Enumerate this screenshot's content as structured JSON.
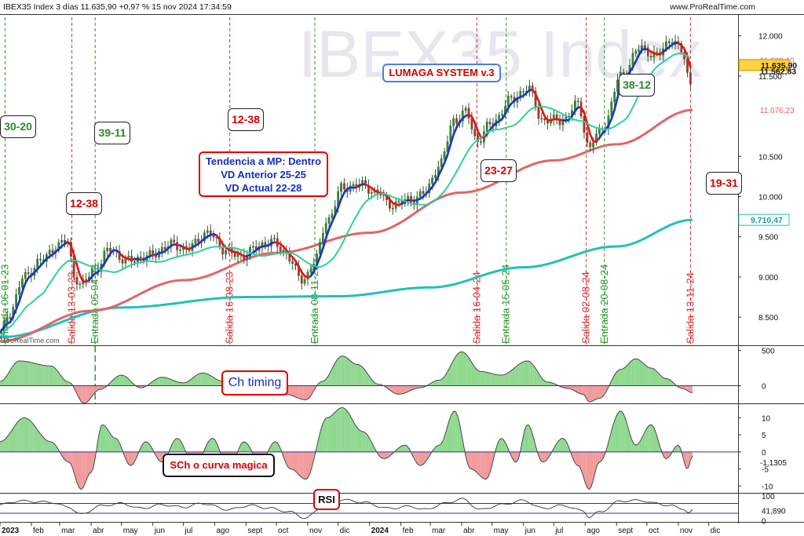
{
  "header": {
    "title": "IBEX35 Index 3 días 11.635,90 +0,97 % 15 nov 2024 17:34:59",
    "source": "www.ProRealTime.com",
    "watermark": "IBEX35 Index",
    "credit": "ProRealTime.com"
  },
  "colors": {
    "candle_up": "#2e8b2e",
    "candle_down": "#c62828",
    "ma_fast": "#2fd0a0",
    "ma_mid": "#e06666",
    "ma_slow": "#22bfbf",
    "trend_blue": "#1a34c8",
    "trend_red": "#e81414",
    "trend_orange": "#f08020",
    "signal_entry": "#2a9a2a",
    "signal_exit": "#d63030",
    "hist_pos": "#8fd88f",
    "hist_neg": "#f09a9a"
  },
  "annotations": {
    "title_box": "LUMAGA SYSTEM v.3",
    "trend_box": [
      "Tendencia a MP: Dentro",
      "VD Anterior 25-25",
      "VD Actual 22-28"
    ],
    "ch_box": "Ch timing",
    "sch_box": "SCh o curva magica",
    "rsi_box": "RSI",
    "count_labels": [
      {
        "text": "30-20",
        "type": "entry"
      },
      {
        "text": "12-38",
        "type": "exit"
      },
      {
        "text": "39-11",
        "type": "entry"
      },
      {
        "text": "12-38",
        "type": "exit"
      },
      {
        "text": "23-27",
        "type": "exit"
      },
      {
        "text": "38-12",
        "type": "entry"
      },
      {
        "text": "19-31",
        "type": "exit"
      }
    ]
  },
  "chart_data": [
    {
      "type": "candlestick",
      "title": "IBEX35 Index 3 días",
      "y_ticks": [
        "12.000",
        "11.500",
        "10.500",
        "10.000",
        "9.500",
        "9.000",
        "8.500"
      ],
      "y_tick_values": [
        12000,
        11500,
        10500,
        10000,
        9500,
        9000,
        8500
      ],
      "ylim": [
        8150,
        12250
      ],
      "x_ticks": [
        "2023",
        "feb",
        "mar",
        "abr",
        "may",
        "jun",
        "jul",
        "ago",
        "sept",
        "oct",
        "nov",
        "dic",
        "2024",
        "feb",
        "mar",
        "abr",
        "may",
        "jun",
        "jul",
        "ago",
        "sept",
        "oct",
        "nov",
        "dic"
      ],
      "x_tick_dates": [
        "2023-01-01",
        "2023-02-01",
        "2023-03-01",
        "2023-04-01",
        "2023-05-01",
        "2023-06-01",
        "2023-07-01",
        "2023-08-01",
        "2023-09-01",
        "2023-10-01",
        "2023-11-01",
        "2023-12-01",
        "2024-01-01",
        "2024-02-01",
        "2024-03-01",
        "2024-04-01",
        "2024-05-01",
        "2024-06-01",
        "2024-07-01",
        "2024-08-01",
        "2024-09-01",
        "2024-10-01",
        "2024-11-01",
        "2024-12-01"
      ],
      "xlim": [
        "2023-01-01",
        "2024-12-30"
      ],
      "price_labels": [
        {
          "text": "11.698,10",
          "value": 11698.1,
          "style": "red-text"
        },
        {
          "text": "11.635,90",
          "value": 11635.9,
          "style": "orange-box"
        },
        {
          "text": "11.562,83",
          "value": 11562.83,
          "style": "plain"
        },
        {
          "text": "11.076,23",
          "value": 11076.23,
          "style": "red-text"
        },
        {
          "text": "9.710,47",
          "value": 9710.47,
          "style": "teal-box"
        }
      ],
      "close_anchors": [
        [
          "2023-01-02",
          8300
        ],
        [
          "2023-01-10",
          8550
        ],
        [
          "2023-01-25",
          9000
        ],
        [
          "2023-02-10",
          9200
        ],
        [
          "2023-02-28",
          9400
        ],
        [
          "2023-03-08",
          9450
        ],
        [
          "2023-03-16",
          9000
        ],
        [
          "2023-03-22",
          8900
        ],
        [
          "2023-04-05",
          9100
        ],
        [
          "2023-04-20",
          9350
        ],
        [
          "2023-05-05",
          9200
        ],
        [
          "2023-05-25",
          9250
        ],
        [
          "2023-06-20",
          9400
        ],
        [
          "2023-07-05",
          9350
        ],
        [
          "2023-07-25",
          9550
        ],
        [
          "2023-08-10",
          9350
        ],
        [
          "2023-08-25",
          9250
        ],
        [
          "2023-09-10",
          9350
        ],
        [
          "2023-09-25",
          9450
        ],
        [
          "2023-10-10",
          9300
        ],
        [
          "2023-10-27",
          8950
        ],
        [
          "2023-11-08",
          9200
        ],
        [
          "2023-11-20",
          9700
        ],
        [
          "2023-12-05",
          10100
        ],
        [
          "2023-12-20",
          10150
        ],
        [
          "2024-01-10",
          10050
        ],
        [
          "2024-01-20",
          9900
        ],
        [
          "2024-02-10",
          9950
        ],
        [
          "2024-02-25",
          10050
        ],
        [
          "2024-03-10",
          10400
        ],
        [
          "2024-03-25",
          10950
        ],
        [
          "2024-04-05",
          11050
        ],
        [
          "2024-04-16",
          10700
        ],
        [
          "2024-04-30",
          10900
        ],
        [
          "2024-05-20",
          11200
        ],
        [
          "2024-06-05",
          11350
        ],
        [
          "2024-06-20",
          10950
        ],
        [
          "2024-07-10",
          10950
        ],
        [
          "2024-07-25",
          11150
        ],
        [
          "2024-08-05",
          10600
        ],
        [
          "2024-08-12",
          10750
        ],
        [
          "2024-08-20",
          10900
        ],
        [
          "2024-09-05",
          11500
        ],
        [
          "2024-09-25",
          11850
        ],
        [
          "2024-10-10",
          11750
        ],
        [
          "2024-10-25",
          11950
        ],
        [
          "2024-11-05",
          11800
        ],
        [
          "2024-11-13",
          11400
        ],
        [
          "2024-11-15",
          11636
        ]
      ],
      "series": [
        {
          "name": "MA slow",
          "color": "#22bfbf",
          "points": [
            [
              "2023-01-01",
              8250
            ],
            [
              "2023-05-01",
              8620
            ],
            [
              "2023-09-01",
              8750
            ],
            [
              "2023-12-01",
              8760
            ],
            [
              "2024-03-01",
              8870
            ],
            [
              "2024-06-01",
              9120
            ],
            [
              "2024-09-01",
              9380
            ],
            [
              "2024-11-15",
              9710
            ]
          ]
        },
        {
          "name": "MA mid",
          "color": "#e06666",
          "points": [
            [
              "2023-01-01",
              8200
            ],
            [
              "2023-04-01",
              8580
            ],
            [
              "2023-07-01",
              8960
            ],
            [
              "2023-10-01",
              9300
            ],
            [
              "2024-01-01",
              9550
            ],
            [
              "2024-04-01",
              10050
            ],
            [
              "2024-07-01",
              10450
            ],
            [
              "2024-09-01",
              10650
            ],
            [
              "2024-11-15",
              11076
            ]
          ]
        }
      ],
      "signals": [
        {
          "label": "Entrada 06-01-23",
          "date": "2023-01-06",
          "type": "entry"
        },
        {
          "label": "Salida 13-03-23",
          "date": "2023-03-13",
          "type": "exit"
        },
        {
          "label": "Entrada 05-04-23",
          "date": "2023-04-05",
          "type": "entry"
        },
        {
          "label": "Salida 16-08-23",
          "date": "2023-08-16",
          "type": "exit"
        },
        {
          "label": "Entrada 08-11-23",
          "date": "2023-11-08",
          "type": "entry"
        },
        {
          "label": "Salida 16-04-24",
          "date": "2024-04-16",
          "type": "exit"
        },
        {
          "label": "Entrada 15-05-24",
          "date": "2024-05-15",
          "type": "entry"
        },
        {
          "label": "Salida 02-08-24",
          "date": "2024-08-02",
          "type": "exit"
        },
        {
          "label": "Entrada 20-08-24",
          "date": "2024-08-20",
          "type": "entry"
        },
        {
          "label": "Salida 13-11-24",
          "date": "2024-11-13",
          "type": "exit"
        }
      ]
    },
    {
      "type": "area",
      "title": "Ch timing",
      "y_ticks": [
        "500",
        "0"
      ],
      "y_tick_values": [
        500,
        0
      ],
      "ylim": [
        -250,
        560
      ],
      "anchors": [
        [
          "2023-01-01",
          60
        ],
        [
          "2023-01-20",
          350
        ],
        [
          "2023-02-20",
          280
        ],
        [
          "2023-03-10",
          50
        ],
        [
          "2023-03-25",
          -250
        ],
        [
          "2023-04-10",
          -50
        ],
        [
          "2023-05-01",
          150
        ],
        [
          "2023-05-20",
          -30
        ],
        [
          "2023-06-10",
          120
        ],
        [
          "2023-07-01",
          40
        ],
        [
          "2023-07-20",
          180
        ],
        [
          "2023-08-10",
          60
        ],
        [
          "2023-08-28",
          -60
        ],
        [
          "2023-09-20",
          40
        ],
        [
          "2023-10-10",
          -120
        ],
        [
          "2023-10-30",
          -200
        ],
        [
          "2023-11-15",
          60
        ],
        [
          "2023-12-05",
          420
        ],
        [
          "2023-12-20",
          300
        ],
        [
          "2024-01-10",
          20
        ],
        [
          "2024-01-30",
          -120
        ],
        [
          "2024-02-20",
          -30
        ],
        [
          "2024-03-10",
          80
        ],
        [
          "2024-04-01",
          480
        ],
        [
          "2024-04-20",
          200
        ],
        [
          "2024-05-10",
          150
        ],
        [
          "2024-06-05",
          350
        ],
        [
          "2024-06-25",
          50
        ],
        [
          "2024-07-15",
          -40
        ],
        [
          "2024-07-30",
          -120
        ],
        [
          "2024-08-05",
          -230
        ],
        [
          "2024-08-15",
          -180
        ],
        [
          "2024-09-05",
          230
        ],
        [
          "2024-09-20",
          380
        ],
        [
          "2024-10-05",
          250
        ],
        [
          "2024-10-20",
          100
        ],
        [
          "2024-11-05",
          -40
        ],
        [
          "2024-11-15",
          -100
        ]
      ]
    },
    {
      "type": "area",
      "title": "SCh o curva magica",
      "y_ticks": [
        "10",
        "5",
        "0",
        "-5",
        "-10"
      ],
      "y_tick_values": [
        10,
        5,
        0,
        -5,
        -10
      ],
      "ylim": [
        -12,
        14
      ],
      "value_label": "-1,1305",
      "anchors": [
        [
          "2023-01-01",
          3
        ],
        [
          "2023-01-25",
          10
        ],
        [
          "2023-02-20",
          3
        ],
        [
          "2023-03-10",
          -3
        ],
        [
          "2023-03-22",
          -11
        ],
        [
          "2023-04-01",
          -6
        ],
        [
          "2023-04-12",
          8
        ],
        [
          "2023-04-25",
          4
        ],
        [
          "2023-05-10",
          -4
        ],
        [
          "2023-05-25",
          3
        ],
        [
          "2023-06-10",
          -3
        ],
        [
          "2023-06-25",
          4
        ],
        [
          "2023-07-12",
          -4
        ],
        [
          "2023-07-30",
          4
        ],
        [
          "2023-08-15",
          -5
        ],
        [
          "2023-08-30",
          3
        ],
        [
          "2023-09-15",
          -3
        ],
        [
          "2023-09-30",
          3
        ],
        [
          "2023-10-15",
          -5
        ],
        [
          "2023-10-30",
          -8
        ],
        [
          "2023-11-20",
          10
        ],
        [
          "2023-12-05",
          13
        ],
        [
          "2023-12-25",
          6
        ],
        [
          "2024-01-15",
          -2
        ],
        [
          "2024-02-05",
          2
        ],
        [
          "2024-02-20",
          -4
        ],
        [
          "2024-03-10",
          2
        ],
        [
          "2024-03-25",
          12
        ],
        [
          "2024-04-10",
          -5
        ],
        [
          "2024-04-25",
          -8
        ],
        [
          "2024-05-10",
          4
        ],
        [
          "2024-05-25",
          -3
        ],
        [
          "2024-06-05",
          8
        ],
        [
          "2024-06-20",
          -3
        ],
        [
          "2024-07-10",
          4
        ],
        [
          "2024-07-25",
          -4
        ],
        [
          "2024-08-05",
          -11
        ],
        [
          "2024-08-15",
          -3
        ],
        [
          "2024-09-05",
          12
        ],
        [
          "2024-09-20",
          2
        ],
        [
          "2024-10-05",
          8
        ],
        [
          "2024-10-20",
          -2
        ],
        [
          "2024-11-01",
          2
        ],
        [
          "2024-11-10",
          -5
        ],
        [
          "2024-11-15",
          -1.13
        ]
      ]
    },
    {
      "type": "line",
      "title": "RSI",
      "y_ticks": [
        "100",
        "0"
      ],
      "y_tick_values": [
        100,
        0
      ],
      "ylim": [
        -5,
        110
      ],
      "guide_levels": [
        70,
        30
      ],
      "value_label": "41,890",
      "anchors": [
        [
          "2023-01-01",
          65
        ],
        [
          "2023-01-20",
          80
        ],
        [
          "2023-02-20",
          75
        ],
        [
          "2023-03-10",
          55
        ],
        [
          "2023-03-22",
          25
        ],
        [
          "2023-04-10",
          60
        ],
        [
          "2023-05-01",
          70
        ],
        [
          "2023-05-20",
          50
        ],
        [
          "2023-06-10",
          65
        ],
        [
          "2023-07-01",
          55
        ],
        [
          "2023-07-20",
          70
        ],
        [
          "2023-08-15",
          45
        ],
        [
          "2023-09-05",
          62
        ],
        [
          "2023-09-25",
          50
        ],
        [
          "2023-10-15",
          35
        ],
        [
          "2023-10-30",
          10
        ],
        [
          "2023-11-15",
          55
        ],
        [
          "2023-12-05",
          85
        ],
        [
          "2023-12-25",
          75
        ],
        [
          "2024-01-20",
          50
        ],
        [
          "2024-02-10",
          58
        ],
        [
          "2024-02-25",
          45
        ],
        [
          "2024-03-15",
          70
        ],
        [
          "2024-04-01",
          88
        ],
        [
          "2024-04-20",
          45
        ],
        [
          "2024-05-10",
          65
        ],
        [
          "2024-06-01",
          82
        ],
        [
          "2024-06-20",
          50
        ],
        [
          "2024-07-10",
          62
        ],
        [
          "2024-07-30",
          40
        ],
        [
          "2024-08-05",
          15
        ],
        [
          "2024-08-15",
          35
        ],
        [
          "2024-09-05",
          80
        ],
        [
          "2024-09-25",
          82
        ],
        [
          "2024-10-10",
          70
        ],
        [
          "2024-10-25",
          60
        ],
        [
          "2024-11-05",
          50
        ],
        [
          "2024-11-12",
          30
        ],
        [
          "2024-11-15",
          41.89
        ]
      ]
    }
  ]
}
